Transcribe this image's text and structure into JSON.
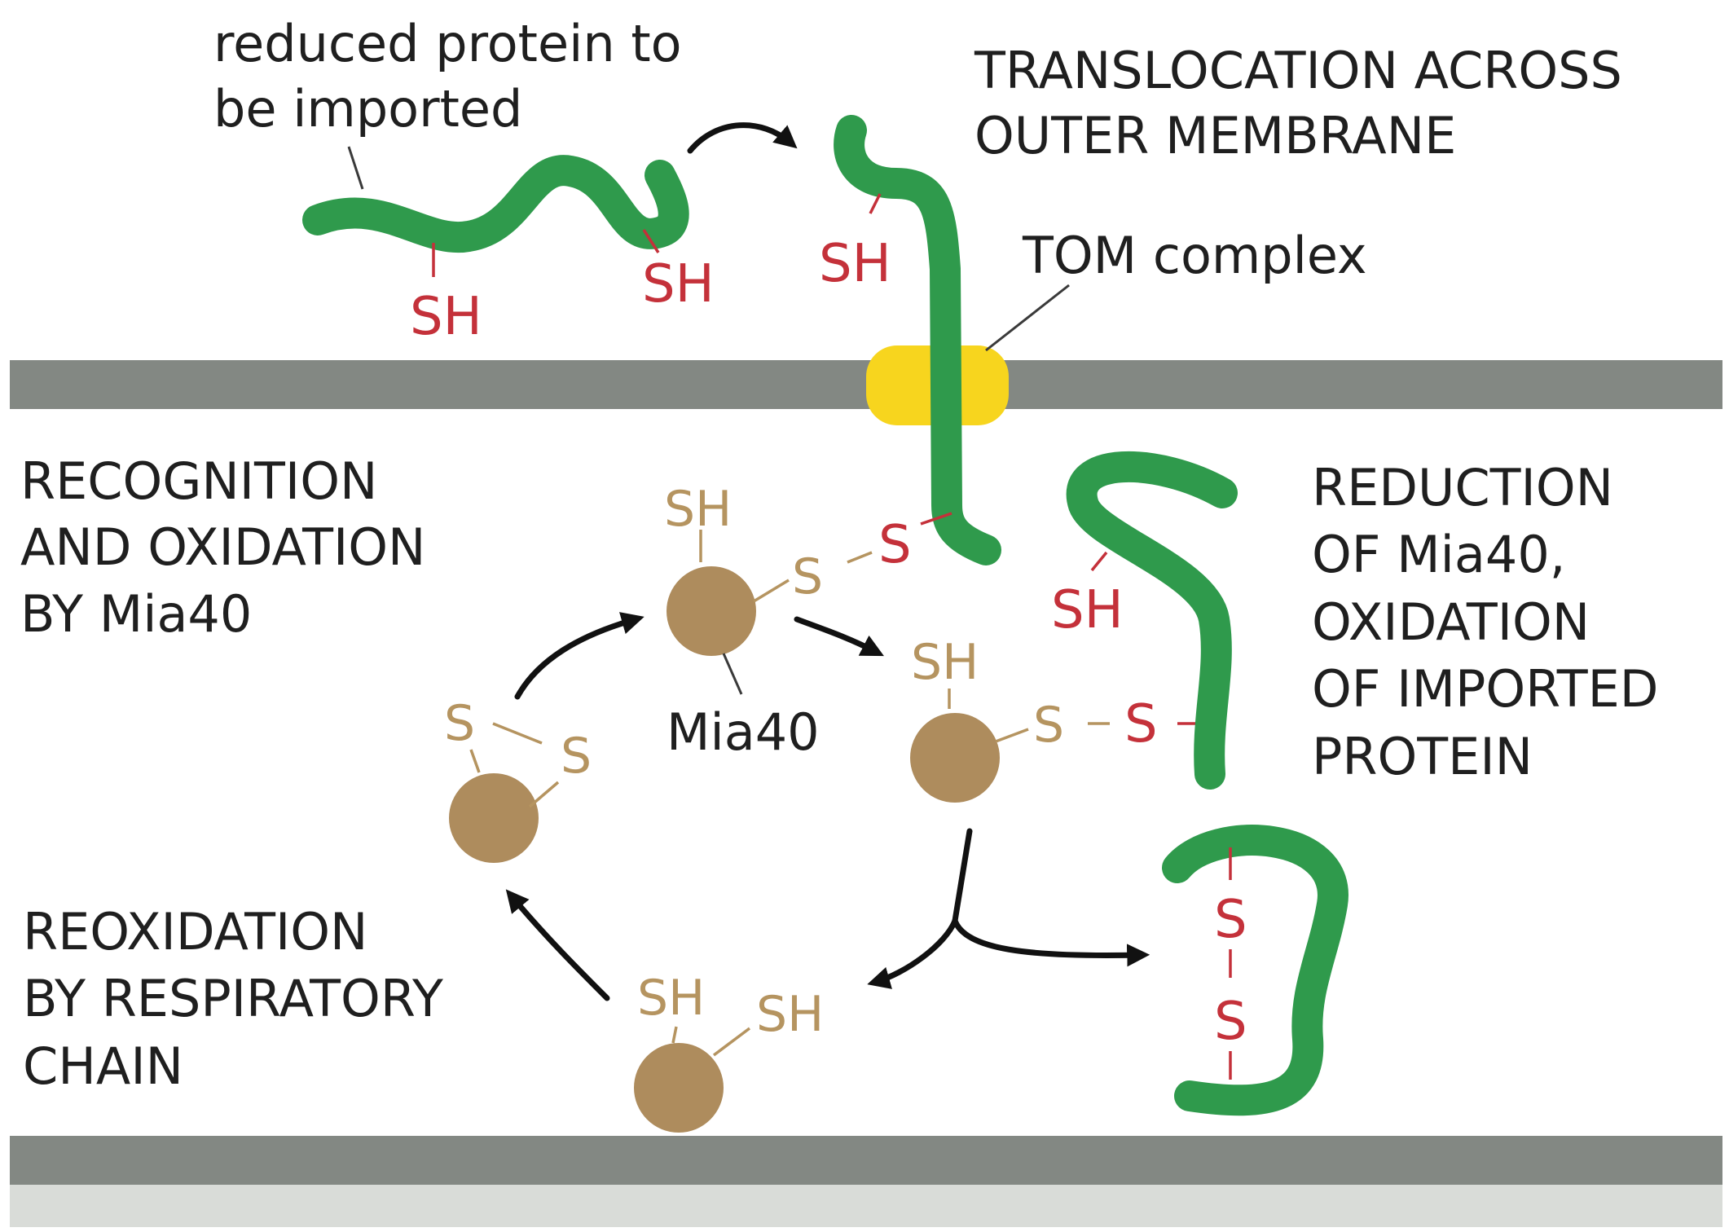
{
  "labels": {
    "reduced_protein_line1": "reduced protein to",
    "reduced_protein_line2": "be imported",
    "translocation_line1": "TRANSLOCATION ACROSS",
    "translocation_line2": "OUTER MEMBRANE",
    "tom_complex": "TOM complex",
    "recognition_line1": "RECOGNITION",
    "recognition_line2": "AND OXIDATION",
    "recognition_line3": "BY Mia40",
    "reduction_line1": "REDUCTION",
    "reduction_line2": "OF Mia40,",
    "reduction_line3": "OXIDATION",
    "reduction_line4": "OF IMPORTED",
    "reduction_line5": "PROTEIN",
    "reoxidation_line1": "REOXIDATION",
    "reoxidation_line2": "BY RESPIRATORY",
    "reoxidation_line3": "CHAIN",
    "mia40": "Mia40",
    "sh": "SH",
    "s": "S"
  },
  "colors": {
    "protein_strand": "#2f9a4c",
    "membrane": "#838883",
    "membrane_light": "#d9dcd8",
    "tom_complex": "#f7d51e",
    "mia40_ball": "#ae8c5d",
    "sulfur_red": "#c4313a",
    "sulfur_tan": "#b59460",
    "arrow": "#111111"
  }
}
